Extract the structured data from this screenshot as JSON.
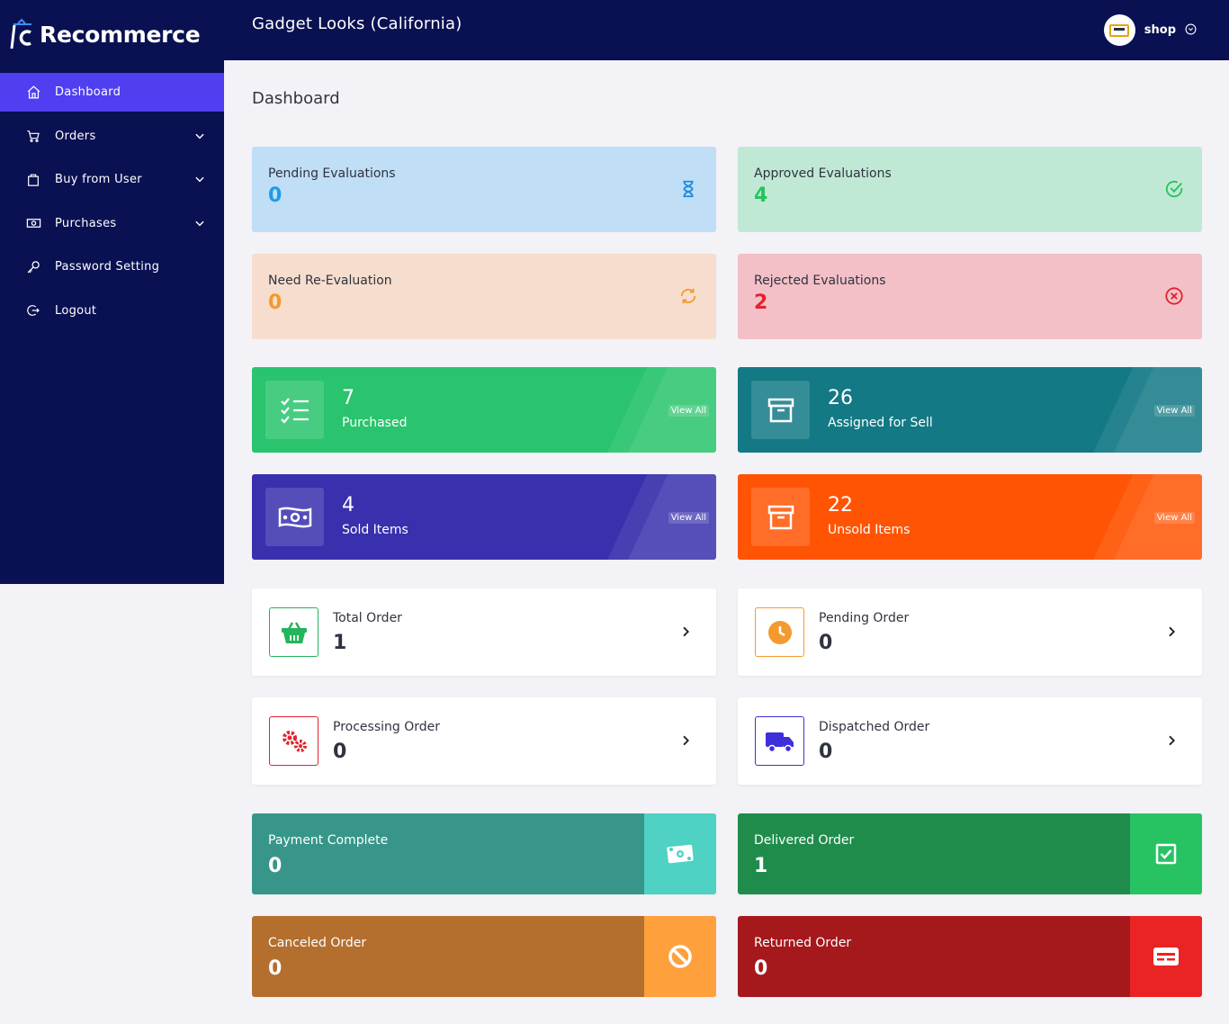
{
  "brand": {
    "name": "Recommerce"
  },
  "sidebar": {
    "items": [
      {
        "label": "Dashboard",
        "icon": "home-icon",
        "active": true
      },
      {
        "label": "Orders",
        "icon": "cart-icon",
        "expandable": true
      },
      {
        "label": "Buy from User",
        "icon": "bag-icon",
        "expandable": true
      },
      {
        "label": "Purchases",
        "icon": "cash-icon",
        "expandable": true
      },
      {
        "label": "Password Setting",
        "icon": "key-icon"
      },
      {
        "label": "Logout",
        "icon": "logout-icon"
      }
    ]
  },
  "header": {
    "store_name": "Gadget Looks (California)",
    "user_name": "shop"
  },
  "page": {
    "title": "Dashboard"
  },
  "evaluations": [
    {
      "label": "Pending Evaluations",
      "value": "0",
      "icon": "hourglass-icon",
      "color": "#1d9be8"
    },
    {
      "label": "Approved Evaluations",
      "value": "4",
      "icon": "check-circle-icon",
      "color": "#26c35f"
    },
    {
      "label": "Need Re-Evaluation",
      "value": "0",
      "icon": "refresh-icon",
      "color": "#f39a2b"
    },
    {
      "label": "Rejected Evaluations",
      "value": "2",
      "icon": "x-circle-icon",
      "color": "#e3222f"
    }
  ],
  "stats": [
    {
      "value": "7",
      "label": "Purchased",
      "link": "View All",
      "icon": "checklist-icon",
      "color": "#29c46d"
    },
    {
      "value": "26",
      "label": "Assigned for Sell",
      "link": "View All",
      "icon": "box-icon",
      "color": "#127985"
    },
    {
      "value": "4",
      "label": "Sold Items",
      "link": "View All",
      "icon": "money-icon",
      "color": "#3830ad"
    },
    {
      "value": "22",
      "label": "Unsold Items",
      "link": "View All",
      "icon": "box-icon",
      "color": "#ff5404"
    }
  ],
  "orders": [
    {
      "label": "Total Order",
      "value": "1",
      "icon": "basket-icon",
      "color": "#24b45c"
    },
    {
      "label": "Pending Order",
      "value": "0",
      "icon": "clock-icon",
      "color": "#f49a2e"
    },
    {
      "label": "Processing Order",
      "value": "0",
      "icon": "gears-icon",
      "color": "#e3222f"
    },
    {
      "label": "Dispatched Order",
      "value": "0",
      "icon": "truck-icon",
      "color": "#3d2fd9"
    }
  ],
  "status_cards": [
    {
      "label": "Payment Complete",
      "value": "0",
      "icon": "cash-icon",
      "color": "#379689",
      "side_color": "#4fd1c3"
    },
    {
      "label": "Delivered Order",
      "value": "1",
      "icon": "check-square-icon",
      "color": "#1f8c4c",
      "side_color": "#27c362"
    },
    {
      "label": "Canceled Order",
      "value": "0",
      "icon": "ban-icon",
      "color": "#b46f2e",
      "side_color": "#fea13d"
    },
    {
      "label": "Returned Order",
      "value": "0",
      "icon": "card-icon",
      "color": "#a5181c",
      "side_color": "#ea2424"
    }
  ]
}
